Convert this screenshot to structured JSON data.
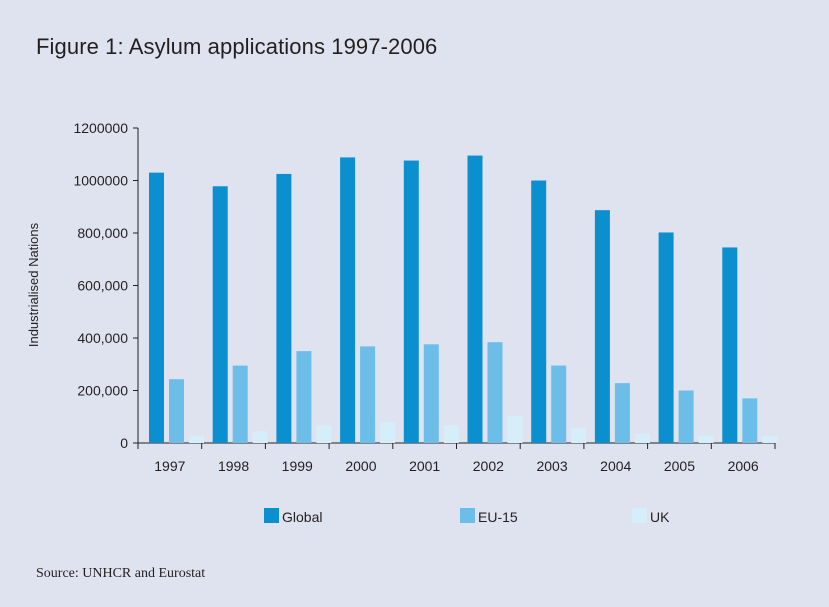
{
  "figure": {
    "title": "Figure 1:  Asylum applications 1997-2006",
    "source": "Source: UNHCR and Eurostat"
  },
  "colors": {
    "background": "#dfe3ef",
    "global": "#0b8fcf",
    "eu15": "#6cbde8",
    "uk": "#d5eef9",
    "axis": "#231f20"
  },
  "chart_data": {
    "type": "bar",
    "title": "Figure 1:  Asylum applications 1997-2006",
    "xlabel": "",
    "ylabel": "Industrialised Nations",
    "ylim": [
      0,
      1200000
    ],
    "yticks": [
      0,
      200000,
      400000,
      600000,
      800000,
      1000000,
      1200000
    ],
    "ytick_labels": [
      "0",
      "200,000",
      "400,000",
      "600,000",
      "800,000",
      "1000000",
      "1200000"
    ],
    "categories": [
      "1997",
      "1998",
      "1999",
      "2000",
      "2001",
      "2002",
      "2003",
      "2004",
      "2005",
      "2006"
    ],
    "series": [
      {
        "name": "Global",
        "color": "#0b8fcf",
        "values": [
          1030000,
          978000,
          1025000,
          1088000,
          1076000,
          1095000,
          1000000,
          887000,
          802000,
          745000
        ]
      },
      {
        "name": "EU-15",
        "color": "#6cbde8",
        "values": [
          243000,
          295000,
          350000,
          368000,
          376000,
          384000,
          295000,
          228000,
          200000,
          170000
        ]
      },
      {
        "name": "UK",
        "color": "#d5eef9",
        "values": [
          28000,
          45000,
          67000,
          80000,
          68000,
          103000,
          58000,
          35000,
          28000,
          26000
        ]
      }
    ],
    "legend_position": "bottom",
    "grid": false
  }
}
